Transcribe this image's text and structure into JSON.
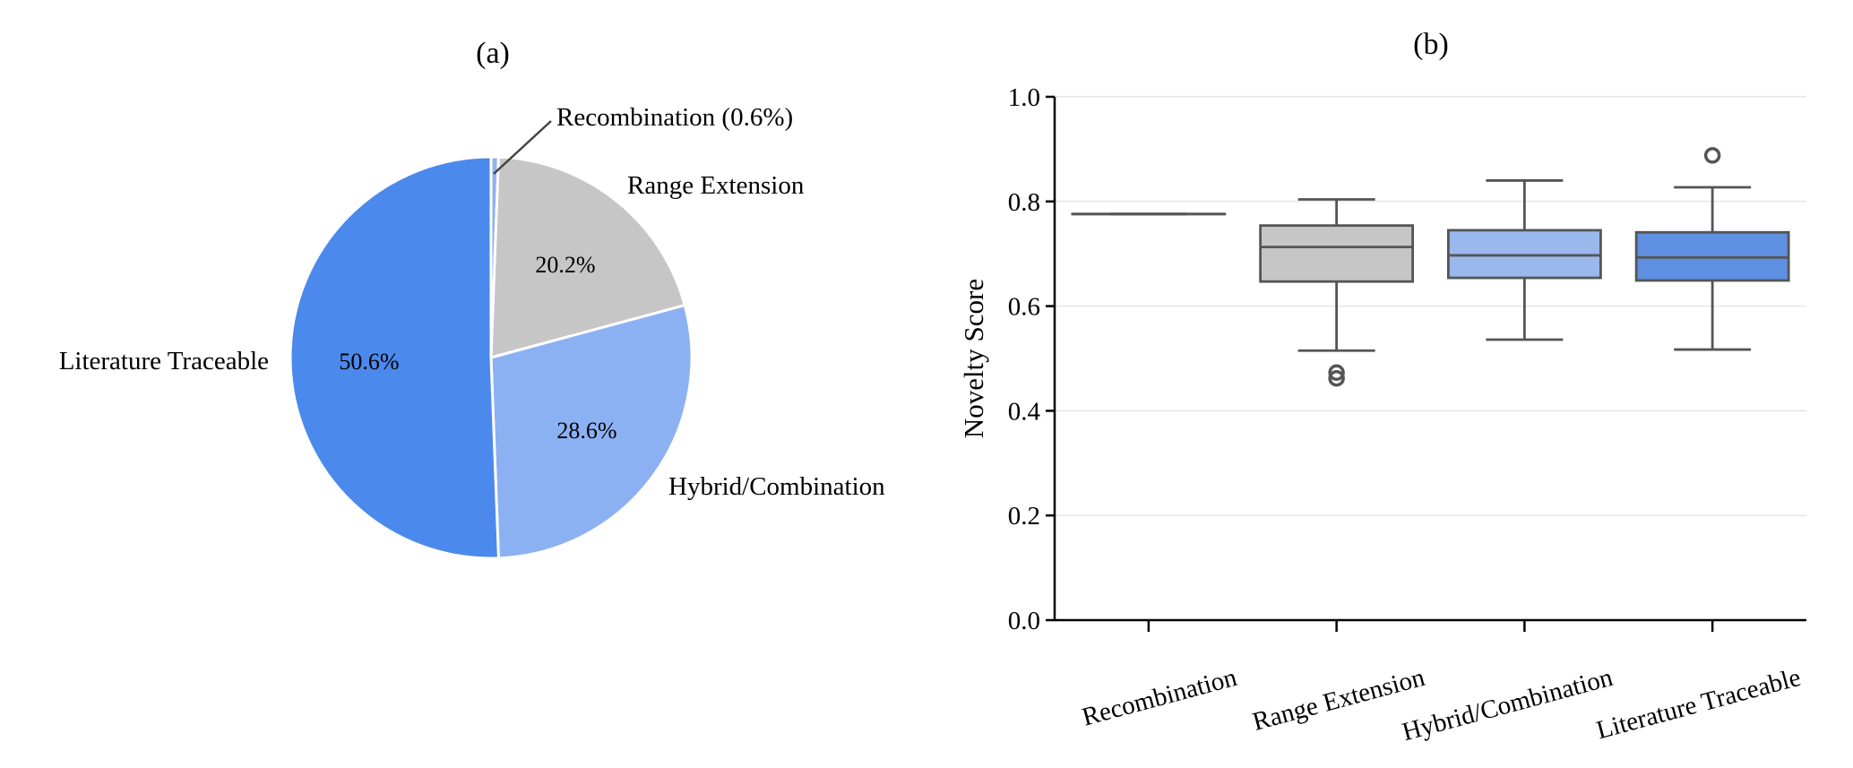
{
  "chart_data": [
    {
      "panel_label": "(a)",
      "type": "pie",
      "categories": [
        "Recombination",
        "Range Extension",
        "Hybrid/Combination",
        "Literature Traceable"
      ],
      "values": [
        0.6,
        20.2,
        28.6,
        50.6
      ],
      "category_labels": [
        "Recombination (0.6%)",
        "Range Extension",
        "Hybrid/Combination",
        "Literature Traceable"
      ],
      "value_labels": [
        "",
        "20.2%",
        "28.6%",
        "50.6%"
      ],
      "colors": [
        "#8fb2f2",
        "#c6c6c6",
        "#8cb1f3",
        "#4c89ec"
      ],
      "start_angle": "12 o'clock",
      "direction": "clockwise"
    },
    {
      "panel_label": "(b)",
      "type": "box",
      "ylabel": "Novelty Score",
      "ylim": [
        0.0,
        1.0
      ],
      "yticks": [
        "0.0",
        "0.2",
        "0.4",
        "0.6",
        "0.8",
        "1.0"
      ],
      "categories": [
        "Recombination",
        "Range Extension",
        "Hybrid/Combination",
        "Literature Traceable"
      ],
      "boxes": [
        {
          "category": "Recombination",
          "whisker_low": 0.776,
          "q1": 0.776,
          "median": 0.776,
          "q3": 0.776,
          "whisker_high": 0.776,
          "outliers": [],
          "color": "#8fb2f2"
        },
        {
          "category": "Range Extension",
          "whisker_low": 0.515,
          "q1": 0.647,
          "median": 0.713,
          "q3": 0.754,
          "whisker_high": 0.804,
          "outliers": [
            0.473,
            0.462
          ],
          "color": "#c6c6c6"
        },
        {
          "category": "Hybrid/Combination",
          "whisker_low": 0.536,
          "q1": 0.654,
          "median": 0.697,
          "q3": 0.745,
          "whisker_high": 0.84,
          "outliers": [],
          "color": "#9ab8ec"
        },
        {
          "category": "Literature Traceable",
          "whisker_low": 0.517,
          "q1": 0.649,
          "median": 0.693,
          "q3": 0.741,
          "whisker_high": 0.827,
          "outliers": [
            0.888
          ],
          "color": "#5f8fe0"
        }
      ],
      "grid": "horizontal"
    }
  ]
}
